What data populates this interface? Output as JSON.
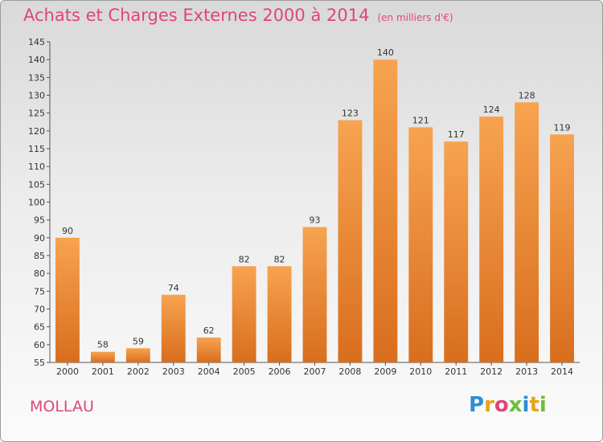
{
  "header": {
    "title": "Achats et Charges Externes 2000 à 2014",
    "subtitle": "(en milliers d'€)"
  },
  "footer": {
    "place": "MOLLAU",
    "logo": "Proxiti"
  },
  "colors": {
    "bar_light": "#f7a350",
    "bar_dark": "#d86e1e",
    "title": "#e0457a"
  },
  "chart_data": {
    "type": "bar",
    "title": "Achats et Charges Externes 2000 à 2014",
    "ylim": [
      55,
      145
    ],
    "ytick_step": 5,
    "grid": false,
    "categories": [
      "2000",
      "2001",
      "2002",
      "2003",
      "2004",
      "2005",
      "2006",
      "2007",
      "2008",
      "2009",
      "2010",
      "2011",
      "2012",
      "2013",
      "2014"
    ],
    "values": [
      90,
      58,
      59,
      74,
      62,
      82,
      82,
      93,
      123,
      140,
      121,
      117,
      124,
      128,
      119
    ]
  }
}
